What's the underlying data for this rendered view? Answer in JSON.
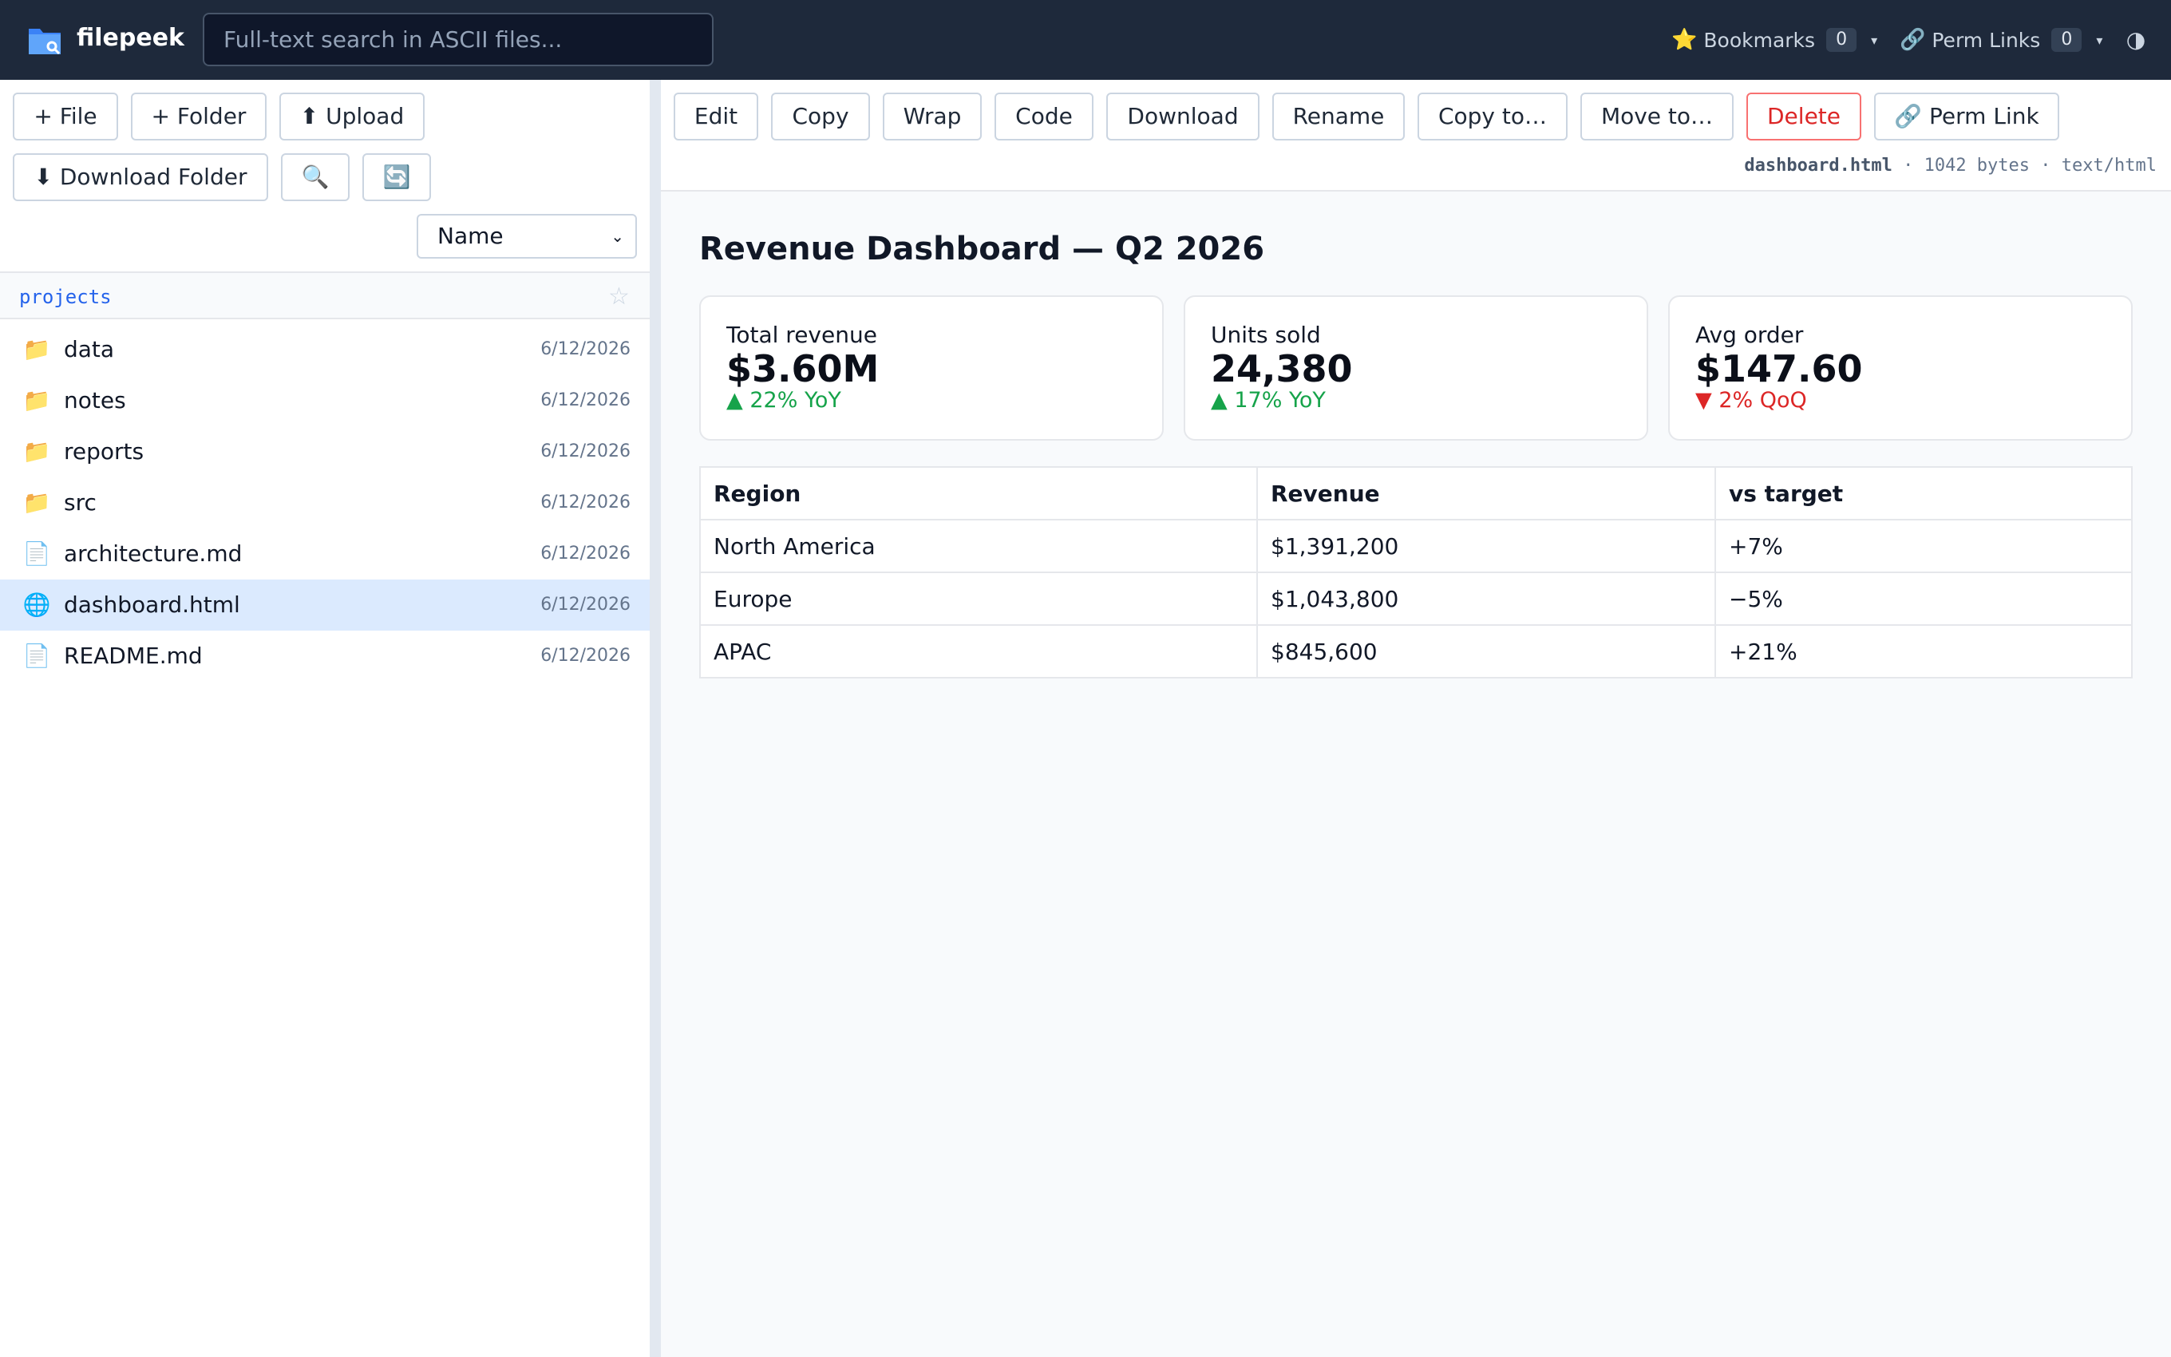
{
  "app": {
    "name": "filepeek",
    "logo_icon": "folder-search-icon"
  },
  "search": {
    "placeholder": "Full-text search in ASCII files..."
  },
  "header": {
    "bookmarks": {
      "icon": "⭐",
      "label": "Bookmarks",
      "count": "0",
      "caret": "▾"
    },
    "perm_links": {
      "icon": "🔗",
      "label": "Perm Links",
      "count": "0",
      "caret": "▾"
    },
    "theme_toggle": "◑"
  },
  "sidebar": {
    "buttons": {
      "new_file": "+ File",
      "new_folder": "+ Folder",
      "upload": "⬆ Upload",
      "download_folder": "⬇ Download Folder",
      "search": "🔍",
      "refresh": "🔄"
    },
    "sort": {
      "selected": "Name",
      "chevron": "⌄"
    },
    "breadcrumb": {
      "path": "projects",
      "star": "☆"
    },
    "items": [
      {
        "icon": "📁",
        "icon_name": "folder-icon",
        "name": "data",
        "date": "6/12/2026",
        "selected": false
      },
      {
        "icon": "📁",
        "icon_name": "folder-icon",
        "name": "notes",
        "date": "6/12/2026",
        "selected": false
      },
      {
        "icon": "📁",
        "icon_name": "folder-icon",
        "name": "reports",
        "date": "6/12/2026",
        "selected": false
      },
      {
        "icon": "📁",
        "icon_name": "folder-icon",
        "name": "src",
        "date": "6/12/2026",
        "selected": false
      },
      {
        "icon": "📄",
        "icon_name": "document-icon",
        "name": "architecture.md",
        "date": "6/12/2026",
        "selected": false
      },
      {
        "icon": "🌐",
        "icon_name": "globe-icon",
        "name": "dashboard.html",
        "date": "6/12/2026",
        "selected": true
      },
      {
        "icon": "📄",
        "icon_name": "document-icon",
        "name": "README.md",
        "date": "6/12/2026",
        "selected": false
      }
    ]
  },
  "toolbar": {
    "edit": "Edit",
    "copy": "Copy",
    "wrap": "Wrap",
    "code": "Code",
    "download": "Download",
    "rename": "Rename",
    "copy_to": "Copy to…",
    "move_to": "Move to…",
    "delete": "Delete",
    "perm_link": "🔗 Perm Link"
  },
  "file_meta": {
    "name": "dashboard.html",
    "separator": " · ",
    "size": "1042 bytes",
    "mime": "text/html"
  },
  "preview": {
    "title": "Revenue Dashboard — Q2 2026",
    "cards": [
      {
        "label": "Total revenue",
        "value": "$3.60M",
        "delta": "▲ 22% YoY",
        "trend": "up"
      },
      {
        "label": "Units sold",
        "value": "24,380",
        "delta": "▲ 17% YoY",
        "trend": "up"
      },
      {
        "label": "Avg order",
        "value": "$147.60",
        "delta": "▼ 2% QoQ",
        "trend": "down"
      }
    ],
    "table": {
      "headers": [
        "Region",
        "Revenue",
        "vs target"
      ],
      "rows": [
        [
          "North America",
          "$1,391,200",
          "+7%"
        ],
        [
          "Europe",
          "$1,043,800",
          "−5%"
        ],
        [
          "APAC",
          "$845,600",
          "+21%"
        ]
      ]
    }
  },
  "colors": {
    "topbar_bg": "#1e293b",
    "accent": "#2563eb",
    "selected_row": "#dbeafe",
    "positive": "#16a34a",
    "negative": "#dc2626"
  }
}
